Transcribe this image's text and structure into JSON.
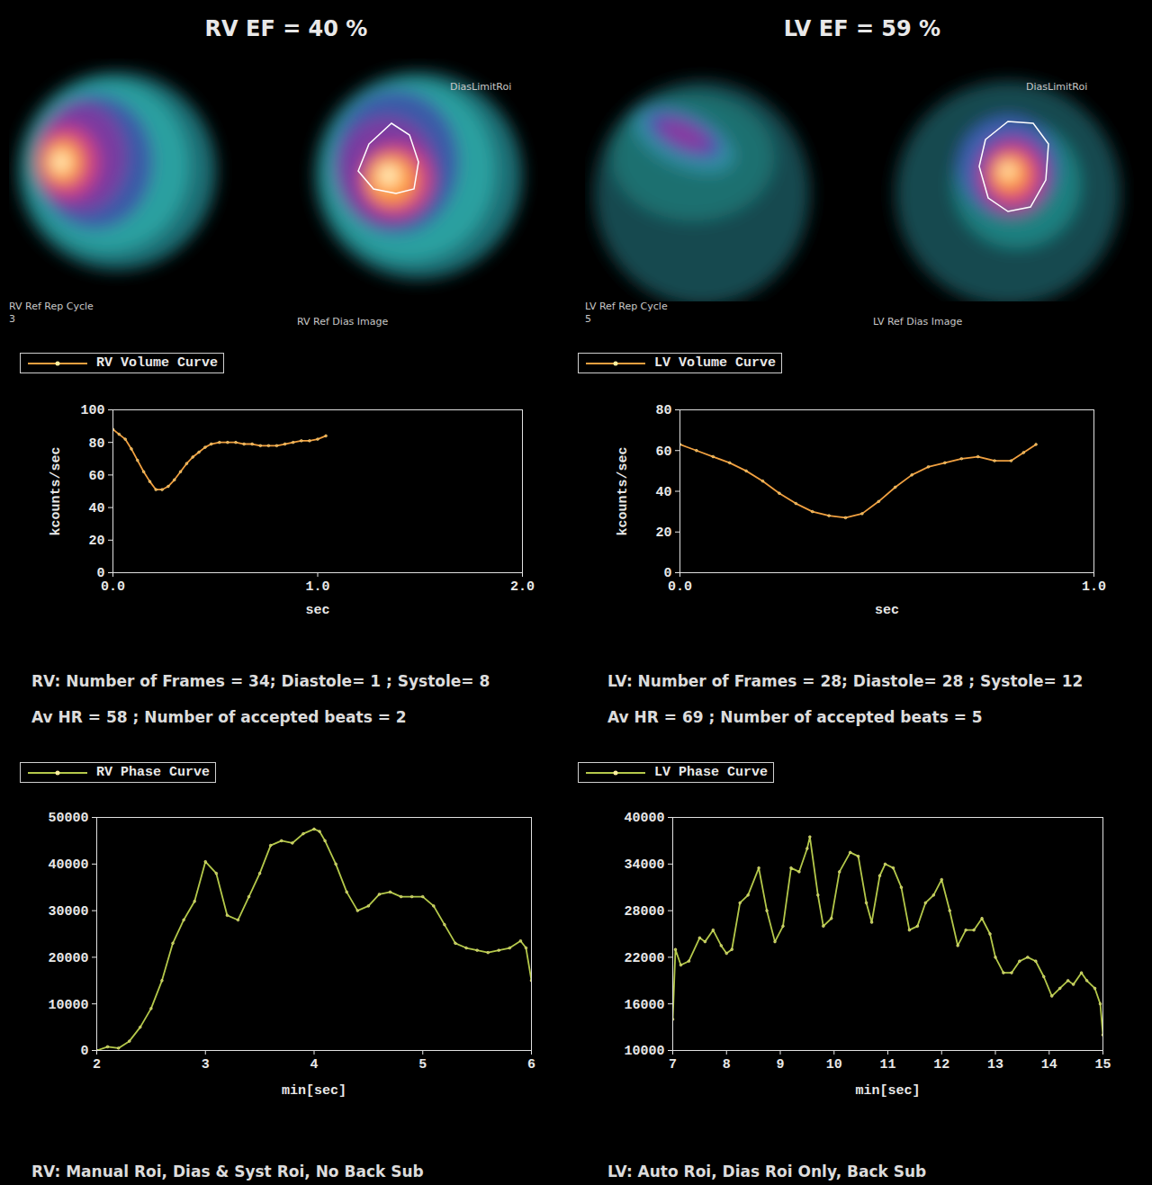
{
  "chart_data": [
    {
      "type": "line",
      "x_label": "sec",
      "y_label": "kcounts/sec",
      "legend": "top-left",
      "xlim": [
        0,
        2
      ],
      "xticks": [
        {
          "value": 0,
          "label": "0.0"
        },
        {
          "value": 1,
          "label": "1.0"
        },
        {
          "value": 2,
          "label": "2.0"
        }
      ],
      "ylim": [
        0,
        100
      ],
      "yticks": [
        0,
        20,
        40,
        60,
        80,
        100
      ],
      "x": [
        0,
        0.03,
        0.06,
        0.09,
        0.12,
        0.15,
        0.18,
        0.21,
        0.24,
        0.27,
        0.3,
        0.33,
        0.36,
        0.39,
        0.42,
        0.45,
        0.48,
        0.52,
        0.56,
        0.6,
        0.64,
        0.68,
        0.72,
        0.76,
        0.8,
        0.84,
        0.88,
        0.92,
        0.96,
        1.0,
        1.04
      ],
      "series": [
        {
          "name": "RV Volume Curve",
          "color": "#f0a040",
          "marker": "dot",
          "line_style": "solid",
          "values": [
            88,
            85,
            82,
            76,
            69,
            62,
            56,
            51,
            51,
            53,
            57,
            62,
            67,
            71,
            74,
            77,
            79,
            80,
            80,
            80,
            79,
            79,
            78,
            78,
            78,
            79,
            80,
            81,
            81,
            82,
            84
          ]
        }
      ]
    },
    {
      "type": "line",
      "x_label": "min[sec]",
      "legend": "top-left",
      "xlim": [
        2,
        6
      ],
      "xticks": [
        2,
        3,
        4,
        5,
        6
      ],
      "ylim": [
        0,
        50000
      ],
      "yticks": [
        0,
        10000,
        20000,
        30000,
        40000,
        50000
      ],
      "x": [
        2.0,
        2.1,
        2.2,
        2.3,
        2.4,
        2.5,
        2.6,
        2.7,
        2.8,
        2.9,
        3.0,
        3.1,
        3.2,
        3.3,
        3.4,
        3.5,
        3.6,
        3.7,
        3.8,
        3.9,
        4.0,
        4.05,
        4.1,
        4.2,
        4.3,
        4.4,
        4.5,
        4.6,
        4.7,
        4.8,
        4.9,
        5.0,
        5.1,
        5.2,
        5.3,
        5.4,
        5.5,
        5.6,
        5.7,
        5.8,
        5.9,
        5.95,
        6.0
      ],
      "series": [
        {
          "name": "RV Phase Curve",
          "color": "#b4c84a",
          "marker": "dot",
          "line_style": "solid",
          "values": [
            0,
            800,
            500,
            2000,
            5000,
            9000,
            15000,
            23000,
            28000,
            32000,
            40500,
            38000,
            29000,
            28000,
            33000,
            38000,
            44000,
            45000,
            44500,
            46500,
            47500,
            47000,
            45000,
            40000,
            34000,
            30000,
            31000,
            33500,
            34000,
            33000,
            33000,
            33000,
            31000,
            27000,
            23000,
            22000,
            21500,
            21000,
            21500,
            22000,
            23500,
            22000,
            15000
          ]
        }
      ]
    },
    {
      "type": "line",
      "x_label": "sec",
      "y_label": "kcounts/sec",
      "legend": "top-left",
      "xlim": [
        0,
        1
      ],
      "xticks": [
        {
          "value": 0,
          "label": "0.0"
        },
        {
          "value": 1,
          "label": "1.0"
        }
      ],
      "ylim": [
        0,
        80
      ],
      "yticks": [
        0,
        20,
        40,
        60,
        80
      ],
      "x": [
        0,
        0.04,
        0.08,
        0.12,
        0.16,
        0.2,
        0.24,
        0.28,
        0.32,
        0.36,
        0.4,
        0.44,
        0.48,
        0.52,
        0.56,
        0.6,
        0.64,
        0.68,
        0.72,
        0.76,
        0.8,
        0.83,
        0.86
      ],
      "series": [
        {
          "name": "LV Volume Curve",
          "color": "#f0a040",
          "marker": "dot",
          "line_style": "solid",
          "values": [
            63,
            60,
            57,
            54,
            50,
            45,
            39,
            34,
            30,
            28,
            27,
            29,
            35,
            42,
            48,
            52,
            54,
            56,
            57,
            55,
            55,
            59,
            63
          ]
        }
      ]
    },
    {
      "type": "line",
      "x_label": "min[sec]",
      "legend": "top-left",
      "xlim": [
        7,
        15
      ],
      "xticks": [
        7,
        8,
        9,
        10,
        11,
        12,
        13,
        14,
        15
      ],
      "ylim": [
        10000,
        40000
      ],
      "yticks": [
        10000,
        16000,
        22000,
        28000,
        34000,
        40000
      ],
      "x": [
        7.0,
        7.05,
        7.15,
        7.3,
        7.5,
        7.6,
        7.75,
        7.9,
        8.0,
        8.1,
        8.25,
        8.4,
        8.6,
        8.75,
        8.9,
        9.05,
        9.2,
        9.35,
        9.5,
        9.55,
        9.7,
        9.8,
        9.95,
        10.1,
        10.3,
        10.45,
        10.6,
        10.7,
        10.85,
        10.95,
        11.1,
        11.25,
        11.4,
        11.55,
        11.7,
        11.85,
        12.0,
        12.15,
        12.3,
        12.45,
        12.6,
        12.75,
        12.9,
        13.0,
        13.15,
        13.3,
        13.45,
        13.6,
        13.75,
        13.9,
        14.05,
        14.2,
        14.35,
        14.45,
        14.6,
        14.7,
        14.85,
        14.95,
        15.0
      ],
      "series": [
        {
          "name": "LV Phase Curve",
          "color": "#b4c84a",
          "marker": "dot",
          "line_style": "solid",
          "values": [
            14000,
            23000,
            21000,
            21500,
            24500,
            24000,
            25500,
            23500,
            22500,
            23000,
            29000,
            30000,
            33500,
            28000,
            24000,
            26000,
            33500,
            33000,
            36000,
            37500,
            30000,
            26000,
            27000,
            33000,
            35500,
            35000,
            29000,
            26500,
            32500,
            34000,
            33500,
            31000,
            25500,
            26000,
            29000,
            30000,
            32000,
            28000,
            23500,
            25500,
            25500,
            27000,
            25000,
            22000,
            20000,
            20000,
            21500,
            22000,
            21500,
            19500,
            17000,
            18000,
            19000,
            18500,
            20000,
            19000,
            18000,
            16000,
            12000
          ]
        }
      ]
    }
  ],
  "panels": [
    {
      "heading": "RV EF = 40 %",
      "images": [
        {
          "caption": "RV Ref Rep Cycle",
          "note": "3"
        },
        {
          "caption": "RV Ref Dias Image",
          "roi": "DiasLimitRoi"
        }
      ],
      "info": [
        "RV: Number of Frames = 34; Diastole= 1 ; Systole= 8",
        "Av HR = 58 ; Number of accepted beats = 2"
      ],
      "footer": "RV: Manual Roi, Dias & Syst Roi, No Back Sub"
    },
    {
      "heading": "LV EF = 59 %",
      "images": [
        {
          "caption": "LV Ref Rep Cycle",
          "note": "5"
        },
        {
          "caption": "LV Ref Dias Image",
          "roi": "DiasLimitRoi"
        }
      ],
      "info": [
        "LV: Number of Frames = 28; Diastole= 28 ; Systole= 12",
        "Av HR = 69 ; Number of accepted beats = 5"
      ],
      "footer": "LV: Auto Roi, Dias Roi Only, Back Sub"
    }
  ]
}
